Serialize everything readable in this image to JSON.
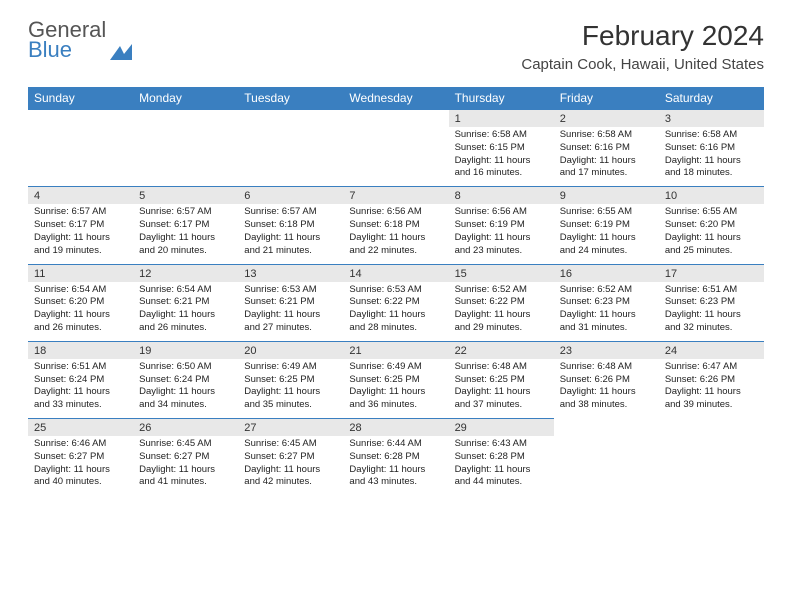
{
  "logo": {
    "word1": "General",
    "word2": "Blue"
  },
  "title": "February 2024",
  "location": "Captain Cook, Hawaii, United States",
  "colors": {
    "header_bg": "#3a7fc0",
    "header_text": "#ffffff",
    "daynum_bg": "#e8e8e8",
    "page_bg": "#ffffff",
    "text": "#222222",
    "rule": "#3a7fc0"
  },
  "fonts": {
    "title_pt": 28,
    "location_pt": 15,
    "dayhead_pt": 12,
    "daynum_pt": 11,
    "detail_pt": 9.5
  },
  "day_headers": [
    "Sunday",
    "Monday",
    "Tuesday",
    "Wednesday",
    "Thursday",
    "Friday",
    "Saturday"
  ],
  "weeks": [
    [
      null,
      null,
      null,
      null,
      {
        "n": "1",
        "sr": "6:58 AM",
        "ss": "6:15 PM",
        "dl": "11 hours and 16 minutes."
      },
      {
        "n": "2",
        "sr": "6:58 AM",
        "ss": "6:16 PM",
        "dl": "11 hours and 17 minutes."
      },
      {
        "n": "3",
        "sr": "6:58 AM",
        "ss": "6:16 PM",
        "dl": "11 hours and 18 minutes."
      }
    ],
    [
      {
        "n": "4",
        "sr": "6:57 AM",
        "ss": "6:17 PM",
        "dl": "11 hours and 19 minutes."
      },
      {
        "n": "5",
        "sr": "6:57 AM",
        "ss": "6:17 PM",
        "dl": "11 hours and 20 minutes."
      },
      {
        "n": "6",
        "sr": "6:57 AM",
        "ss": "6:18 PM",
        "dl": "11 hours and 21 minutes."
      },
      {
        "n": "7",
        "sr": "6:56 AM",
        "ss": "6:18 PM",
        "dl": "11 hours and 22 minutes."
      },
      {
        "n": "8",
        "sr": "6:56 AM",
        "ss": "6:19 PM",
        "dl": "11 hours and 23 minutes."
      },
      {
        "n": "9",
        "sr": "6:55 AM",
        "ss": "6:19 PM",
        "dl": "11 hours and 24 minutes."
      },
      {
        "n": "10",
        "sr": "6:55 AM",
        "ss": "6:20 PM",
        "dl": "11 hours and 25 minutes."
      }
    ],
    [
      {
        "n": "11",
        "sr": "6:54 AM",
        "ss": "6:20 PM",
        "dl": "11 hours and 26 minutes."
      },
      {
        "n": "12",
        "sr": "6:54 AM",
        "ss": "6:21 PM",
        "dl": "11 hours and 26 minutes."
      },
      {
        "n": "13",
        "sr": "6:53 AM",
        "ss": "6:21 PM",
        "dl": "11 hours and 27 minutes."
      },
      {
        "n": "14",
        "sr": "6:53 AM",
        "ss": "6:22 PM",
        "dl": "11 hours and 28 minutes."
      },
      {
        "n": "15",
        "sr": "6:52 AM",
        "ss": "6:22 PM",
        "dl": "11 hours and 29 minutes."
      },
      {
        "n": "16",
        "sr": "6:52 AM",
        "ss": "6:23 PM",
        "dl": "11 hours and 31 minutes."
      },
      {
        "n": "17",
        "sr": "6:51 AM",
        "ss": "6:23 PM",
        "dl": "11 hours and 32 minutes."
      }
    ],
    [
      {
        "n": "18",
        "sr": "6:51 AM",
        "ss": "6:24 PM",
        "dl": "11 hours and 33 minutes."
      },
      {
        "n": "19",
        "sr": "6:50 AM",
        "ss": "6:24 PM",
        "dl": "11 hours and 34 minutes."
      },
      {
        "n": "20",
        "sr": "6:49 AM",
        "ss": "6:25 PM",
        "dl": "11 hours and 35 minutes."
      },
      {
        "n": "21",
        "sr": "6:49 AM",
        "ss": "6:25 PM",
        "dl": "11 hours and 36 minutes."
      },
      {
        "n": "22",
        "sr": "6:48 AM",
        "ss": "6:25 PM",
        "dl": "11 hours and 37 minutes."
      },
      {
        "n": "23",
        "sr": "6:48 AM",
        "ss": "6:26 PM",
        "dl": "11 hours and 38 minutes."
      },
      {
        "n": "24",
        "sr": "6:47 AM",
        "ss": "6:26 PM",
        "dl": "11 hours and 39 minutes."
      }
    ],
    [
      {
        "n": "25",
        "sr": "6:46 AM",
        "ss": "6:27 PM",
        "dl": "11 hours and 40 minutes."
      },
      {
        "n": "26",
        "sr": "6:45 AM",
        "ss": "6:27 PM",
        "dl": "11 hours and 41 minutes."
      },
      {
        "n": "27",
        "sr": "6:45 AM",
        "ss": "6:27 PM",
        "dl": "11 hours and 42 minutes."
      },
      {
        "n": "28",
        "sr": "6:44 AM",
        "ss": "6:28 PM",
        "dl": "11 hours and 43 minutes."
      },
      {
        "n": "29",
        "sr": "6:43 AM",
        "ss": "6:28 PM",
        "dl": "11 hours and 44 minutes."
      },
      null,
      null
    ]
  ],
  "labels": {
    "sunrise": "Sunrise:",
    "sunset": "Sunset:",
    "daylight": "Daylight:"
  }
}
